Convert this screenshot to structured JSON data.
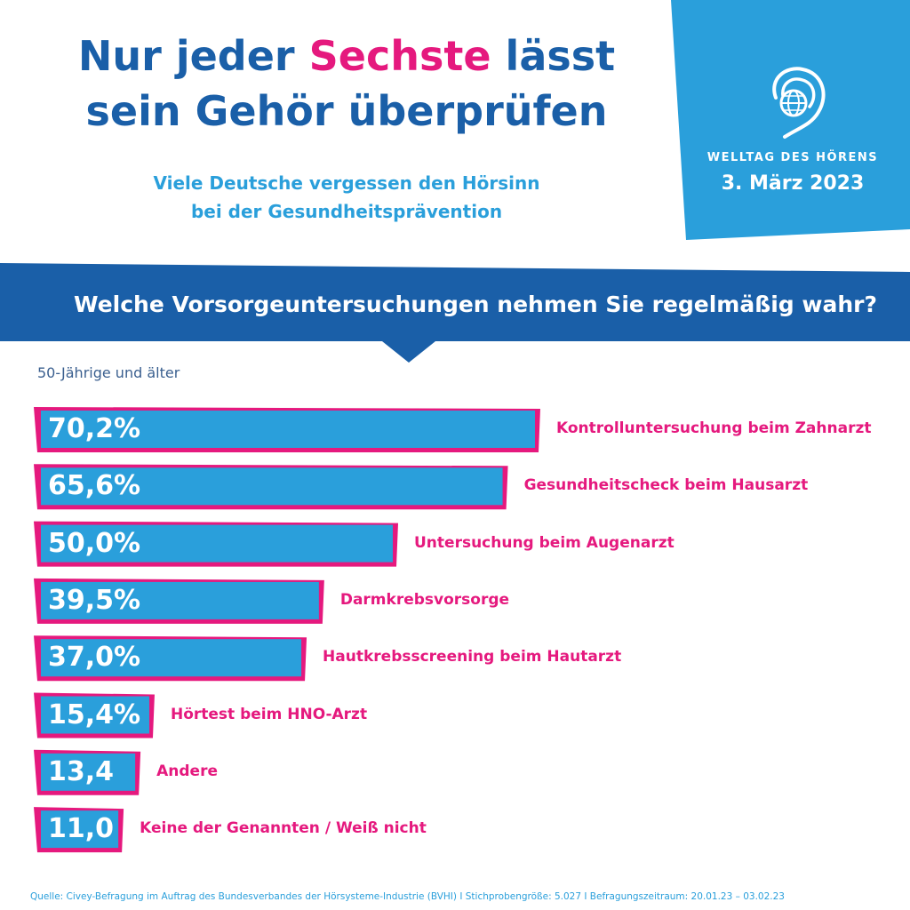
{
  "header": {
    "title_part1": "Nur jeder ",
    "title_accent": "Sechste",
    "title_part2": " lässt",
    "title_line2": "sein Gehör überprüfen",
    "subtitle_line1": "Viele Deutsche vergessen den Hörsinn",
    "subtitle_line2": "bei der Gesundheitsprävention"
  },
  "badge": {
    "event": "WELLTAG DES HÖRENS",
    "date": "3. März 2023",
    "icon": "ear-globe-icon"
  },
  "colors": {
    "dark_blue": "#1a5fa8",
    "light_blue": "#2a9fdb",
    "magenta": "#e5197e"
  },
  "chart_data": {
    "type": "bar",
    "orientation": "horizontal",
    "title": "Welche Vorsorgeuntersuchungen nehmen Sie regelmäßig wahr?",
    "group_label": "50-Jährige und älter",
    "categories": [
      "Kontrolluntersuchung beim Zahnarzt",
      "Gesundheitscheck beim Hausarzt",
      "Untersuchung beim Augenarzt",
      "Darmkrebsvorsorge",
      "Hautkrebsscreening beim Hautarzt",
      "Hörtest beim HNO-Arzt",
      "Andere",
      "Keine der Genannten / Weiß nicht"
    ],
    "values": [
      70.2,
      65.6,
      50.0,
      39.5,
      37.0,
      15.4,
      13.4,
      11.0
    ],
    "value_labels": [
      "70,2%",
      "65,6%",
      "50,0%",
      "39,5%",
      "37,0%",
      "15,4%",
      "13,4",
      "11,0"
    ],
    "unit": "%"
  },
  "footer": {
    "source": "Quelle: Civey-Befragung im Auftrag des Bundesverbandes der Hörsysteme-Industrie (BVHI) I Stichprobengröße: 5.027 I Befragungszeitraum: 20.01.23 – 03.02.23"
  }
}
